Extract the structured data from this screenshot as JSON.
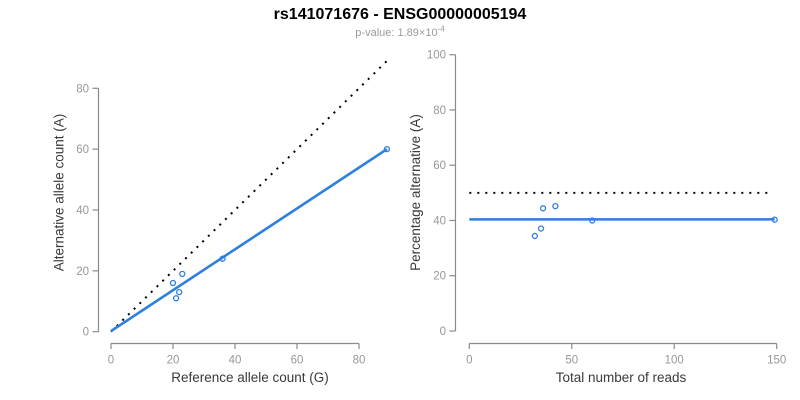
{
  "header": {
    "title": "rs141071676 - ENSG00000005194",
    "pvalue_label": "p-value: 1.89×10",
    "pvalue_exponent": "-4"
  },
  "colors": {
    "accent_blue": "#2D7FE0",
    "dotted_line": "#000000",
    "axis_line": "#8A8A8A",
    "tick_label": "#979797",
    "axis_title": "#3A3A3A",
    "title_text": "#000000",
    "subtitle_text": "#9B9B9B",
    "background": "#FFFFFF"
  },
  "chart_data": [
    {
      "type": "scatter",
      "panel": "left",
      "xlabel": "Reference allele count (G)",
      "ylabel": "Alternative allele count (A)",
      "xlim": [
        0,
        80
      ],
      "ylim": [
        0,
        80
      ],
      "xticks": [
        0,
        20,
        40,
        60,
        80
      ],
      "yticks": [
        0,
        20,
        40,
        60,
        80
      ],
      "grid": false,
      "legend": "none",
      "marker": "open-circle",
      "points": [
        [
          20,
          16
        ],
        [
          21,
          11
        ],
        [
          22,
          13
        ],
        [
          23,
          19
        ],
        [
          36,
          24
        ],
        [
          89,
          60
        ]
      ],
      "lines": [
        {
          "name": "expected-50pct-line",
          "style": "dotted",
          "color": "black",
          "x1": 0,
          "y1": 0,
          "x2": 90,
          "y2": 90
        },
        {
          "name": "fitted-line",
          "style": "solid",
          "color": "blue",
          "x1": 0,
          "y1": 0.2,
          "x2": 89,
          "y2": 60
        }
      ]
    },
    {
      "type": "scatter",
      "panel": "right",
      "xlabel": "Total number of reads",
      "ylabel": "Percentage alternative (A)",
      "xlim": [
        0,
        150
      ],
      "ylim": [
        0,
        100
      ],
      "xticks": [
        0,
        50,
        100,
        150
      ],
      "yticks": [
        0,
        20,
        40,
        60,
        80,
        100
      ],
      "grid": false,
      "legend": "none",
      "marker": "open-circle",
      "points": [
        [
          36,
          44.4
        ],
        [
          32,
          34.4
        ],
        [
          35,
          37.1
        ],
        [
          42,
          45.2
        ],
        [
          60,
          40
        ],
        [
          149,
          40.3
        ]
      ],
      "lines": [
        {
          "name": "expected-50pct-line",
          "style": "dotted",
          "color": "black",
          "x1": 0,
          "y1": 50,
          "x2": 147,
          "y2": 50
        },
        {
          "name": "fitted-line",
          "style": "solid",
          "color": "blue",
          "x1": 0,
          "y1": 40.4,
          "x2": 149,
          "y2": 40.4
        }
      ]
    }
  ]
}
